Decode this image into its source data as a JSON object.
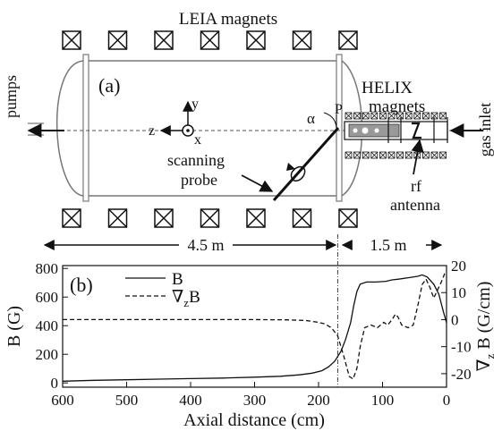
{
  "panel_a": {
    "label": "(a)",
    "leia_label": "LEIA magnets",
    "helix_label_line1": "HELIX",
    "helix_label_line2": "magnets",
    "pumps_label": "pumps",
    "gas_inlet_label": "gas inlet",
    "scanning_probe_line1": "scanning",
    "scanning_probe_line2": "probe",
    "rf_line1": "rf",
    "rf_line2": "antenna",
    "alpha_label": "α",
    "p_label": "P",
    "axis_y": "y",
    "axis_z": "z",
    "axis_x": "x",
    "dim_left": "4.5 m",
    "dim_right": "1.5 m",
    "leia_magnet_count_per_row": 7,
    "helix_coil_count_per_row": 12
  },
  "chart_data": {
    "type": "line",
    "panel_label": "(b)",
    "xlabel": "Axial distance (cm)",
    "ylabel_left": "B (G)",
    "ylabel_right_main": "∇",
    "ylabel_right_sub": "z",
    "ylabel_right_end": " B (G/cm)",
    "x_reversed": true,
    "xlim": [
      600,
      0
    ],
    "ylim_left": [
      -30,
      820
    ],
    "ylim_right": [
      -25,
      20
    ],
    "xticks": [
      600,
      500,
      400,
      300,
      200,
      100,
      0
    ],
    "yticks_left": [
      0,
      200,
      400,
      600,
      800
    ],
    "yticks_right": [
      -20,
      -10,
      0,
      10,
      20
    ],
    "vline_x": 170,
    "legend": [
      {
        "label_main": "B",
        "label_sub": "",
        "style": "solid"
      },
      {
        "label_main": "∇",
        "label_sub": "z",
        "label_end": "B",
        "style": "dashed"
      }
    ],
    "series": [
      {
        "axis": "left",
        "style": "solid",
        "points": [
          [
            600,
            12
          ],
          [
            550,
            18
          ],
          [
            500,
            22
          ],
          [
            450,
            26
          ],
          [
            400,
            30
          ],
          [
            350,
            34
          ],
          [
            300,
            40
          ],
          [
            260,
            46
          ],
          [
            230,
            56
          ],
          [
            210,
            68
          ],
          [
            195,
            85
          ],
          [
            185,
            110
          ],
          [
            175,
            150
          ],
          [
            165,
            220
          ],
          [
            158,
            300
          ],
          [
            150,
            420
          ],
          [
            145,
            540
          ],
          [
            140,
            640
          ],
          [
            135,
            690
          ],
          [
            125,
            705
          ],
          [
            110,
            705
          ],
          [
            95,
            710
          ],
          [
            85,
            720
          ],
          [
            75,
            725
          ],
          [
            60,
            735
          ],
          [
            45,
            745
          ],
          [
            38,
            755
          ],
          [
            30,
            740
          ],
          [
            20,
            690
          ],
          [
            12,
            620
          ],
          [
            5,
            500
          ],
          [
            0,
            420
          ]
        ]
      },
      {
        "axis": "right",
        "style": "dashed",
        "points": [
          [
            600,
            0
          ],
          [
            500,
            0
          ],
          [
            400,
            0
          ],
          [
            350,
            0
          ],
          [
            300,
            0
          ],
          [
            250,
            -0.1
          ],
          [
            220,
            -0.3
          ],
          [
            200,
            -1
          ],
          [
            190,
            -1.6
          ],
          [
            180,
            -3
          ],
          [
            170,
            -6
          ],
          [
            160,
            -14
          ],
          [
            152,
            -21
          ],
          [
            146,
            -22
          ],
          [
            140,
            -18
          ],
          [
            135,
            -10
          ],
          [
            128,
            -3
          ],
          [
            118,
            -2
          ],
          [
            108,
            -3
          ],
          [
            98,
            -1
          ],
          [
            92,
            -2
          ],
          [
            85,
            0
          ],
          [
            80,
            2
          ],
          [
            76,
            1
          ],
          [
            70,
            -2
          ],
          [
            60,
            -3
          ],
          [
            52,
            -2
          ],
          [
            45,
            5
          ],
          [
            38,
            13
          ],
          [
            32,
            15
          ],
          [
            26,
            12
          ],
          [
            20,
            8
          ],
          [
            14,
            11
          ],
          [
            8,
            14
          ],
          [
            3,
            17
          ],
          [
            0,
            18
          ]
        ]
      }
    ]
  }
}
